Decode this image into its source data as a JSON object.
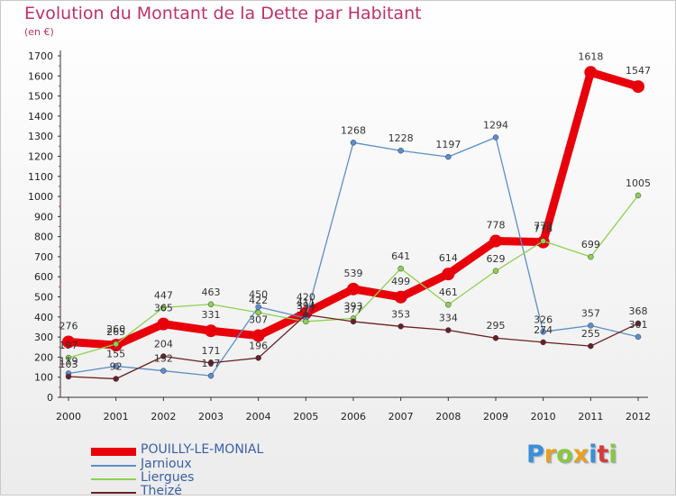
{
  "title": "Evolution du Montant de la Dette par Habitant",
  "unit": "(en €)",
  "brand": [
    "P",
    "r",
    "o",
    "x",
    "i",
    "t",
    "i"
  ],
  "brand_colors": [
    "#3a8fd8",
    "#e8a020",
    "#8cc63f",
    "#e8a020",
    "#3a8fd8",
    "#d83a3a",
    "#8cc63f"
  ],
  "chart_data": {
    "type": "line",
    "categories": [
      "2000",
      "2001",
      "2002",
      "2003",
      "2004",
      "2005",
      "2006",
      "2007",
      "2008",
      "2009",
      "2010",
      "2011",
      "2012"
    ],
    "ylim": [
      0,
      1700
    ],
    "yticks": [
      0,
      100,
      200,
      300,
      400,
      500,
      600,
      700,
      800,
      900,
      1000,
      1100,
      1200,
      1300,
      1400,
      1500,
      1600,
      1700
    ],
    "grid": false,
    "legend_position": "bottom-left",
    "series": [
      {
        "name": "POUILLY-LE-MONIAL",
        "color": "#e8000b",
        "width": 9,
        "values": [
          276,
          260,
          365,
          331,
          307,
          420,
          539,
          499,
          614,
          778,
          773,
          1618,
          1547
        ],
        "labels": [
          "276",
          "260",
          "365",
          "331",
          "307",
          "420",
          "539",
          "499",
          "614",
          "778",
          "773",
          "1618",
          "1547"
        ]
      },
      {
        "name": "Jarnioux",
        "color": "#5b8fc7",
        "width": 1.3,
        "values": [
          119,
          155,
          132,
          107,
          450,
          394,
          1268,
          1228,
          1197,
          1294,
          326,
          357,
          301
        ],
        "labels": [
          "119",
          "155",
          "132",
          "107",
          "450",
          "394",
          "1268",
          "1228",
          "1197",
          "1294",
          "326",
          "357",
          "301"
        ]
      },
      {
        "name": "Liergues",
        "color": "#8fd14f",
        "width": 1.3,
        "values": [
          197,
          265,
          447,
          463,
          422,
          377,
          393,
          641,
          461,
          629,
          778,
          699,
          1005
        ],
        "labels": [
          "197",
          "265",
          "447",
          "463",
          "422",
          "377",
          "393",
          "641",
          "461",
          "629",
          "778",
          "699",
          "1005"
        ]
      },
      {
        "name": "Theizé",
        "color": "#6b2020",
        "width": 1.3,
        "values": [
          103,
          92,
          204,
          171,
          196,
          411,
          377,
          353,
          334,
          295,
          274,
          255,
          368
        ],
        "labels": [
          "103",
          "92",
          "204",
          "171",
          "196",
          "411",
          "377",
          "353",
          "334",
          "295",
          "274",
          "255",
          "368"
        ]
      }
    ]
  }
}
